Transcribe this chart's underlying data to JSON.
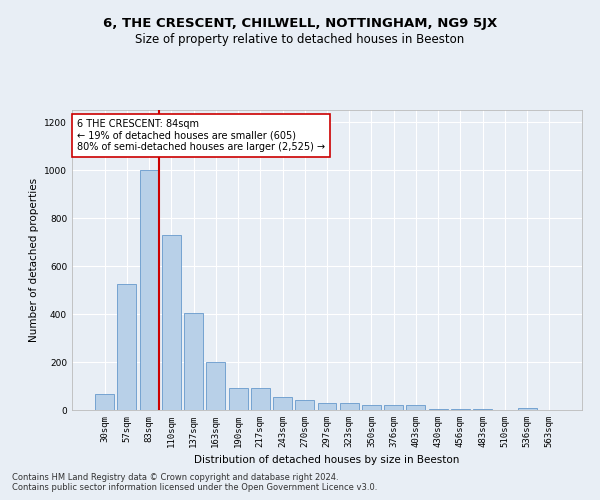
{
  "title": "6, THE CRESCENT, CHILWELL, NOTTINGHAM, NG9 5JX",
  "subtitle": "Size of property relative to detached houses in Beeston",
  "xlabel": "Distribution of detached houses by size in Beeston",
  "ylabel": "Number of detached properties",
  "categories": [
    "30sqm",
    "57sqm",
    "83sqm",
    "110sqm",
    "137sqm",
    "163sqm",
    "190sqm",
    "217sqm",
    "243sqm",
    "270sqm",
    "297sqm",
    "323sqm",
    "350sqm",
    "376sqm",
    "403sqm",
    "430sqm",
    "456sqm",
    "483sqm",
    "510sqm",
    "536sqm",
    "563sqm"
  ],
  "values": [
    65,
    525,
    1000,
    730,
    405,
    200,
    90,
    90,
    55,
    40,
    30,
    30,
    20,
    20,
    20,
    5,
    5,
    5,
    0,
    10,
    0
  ],
  "bar_color": "#b8d0e8",
  "bar_edge_color": "#6699cc",
  "property_line_color": "#cc0000",
  "annotation_text": "6 THE CRESCENT: 84sqm\n← 19% of detached houses are smaller (605)\n80% of semi-detached houses are larger (2,525) →",
  "annotation_box_color": "#ffffff",
  "annotation_box_edge_color": "#cc0000",
  "ylim": [
    0,
    1250
  ],
  "yticks": [
    0,
    200,
    400,
    600,
    800,
    1000,
    1200
  ],
  "footer_line1": "Contains HM Land Registry data © Crown copyright and database right 2024.",
  "footer_line2": "Contains public sector information licensed under the Open Government Licence v3.0.",
  "background_color": "#e8eef5",
  "grid_color": "#ffffff",
  "title_fontsize": 9.5,
  "subtitle_fontsize": 8.5,
  "axis_label_fontsize": 7.5,
  "tick_fontsize": 6.5,
  "annotation_fontsize": 7,
  "footer_fontsize": 6
}
